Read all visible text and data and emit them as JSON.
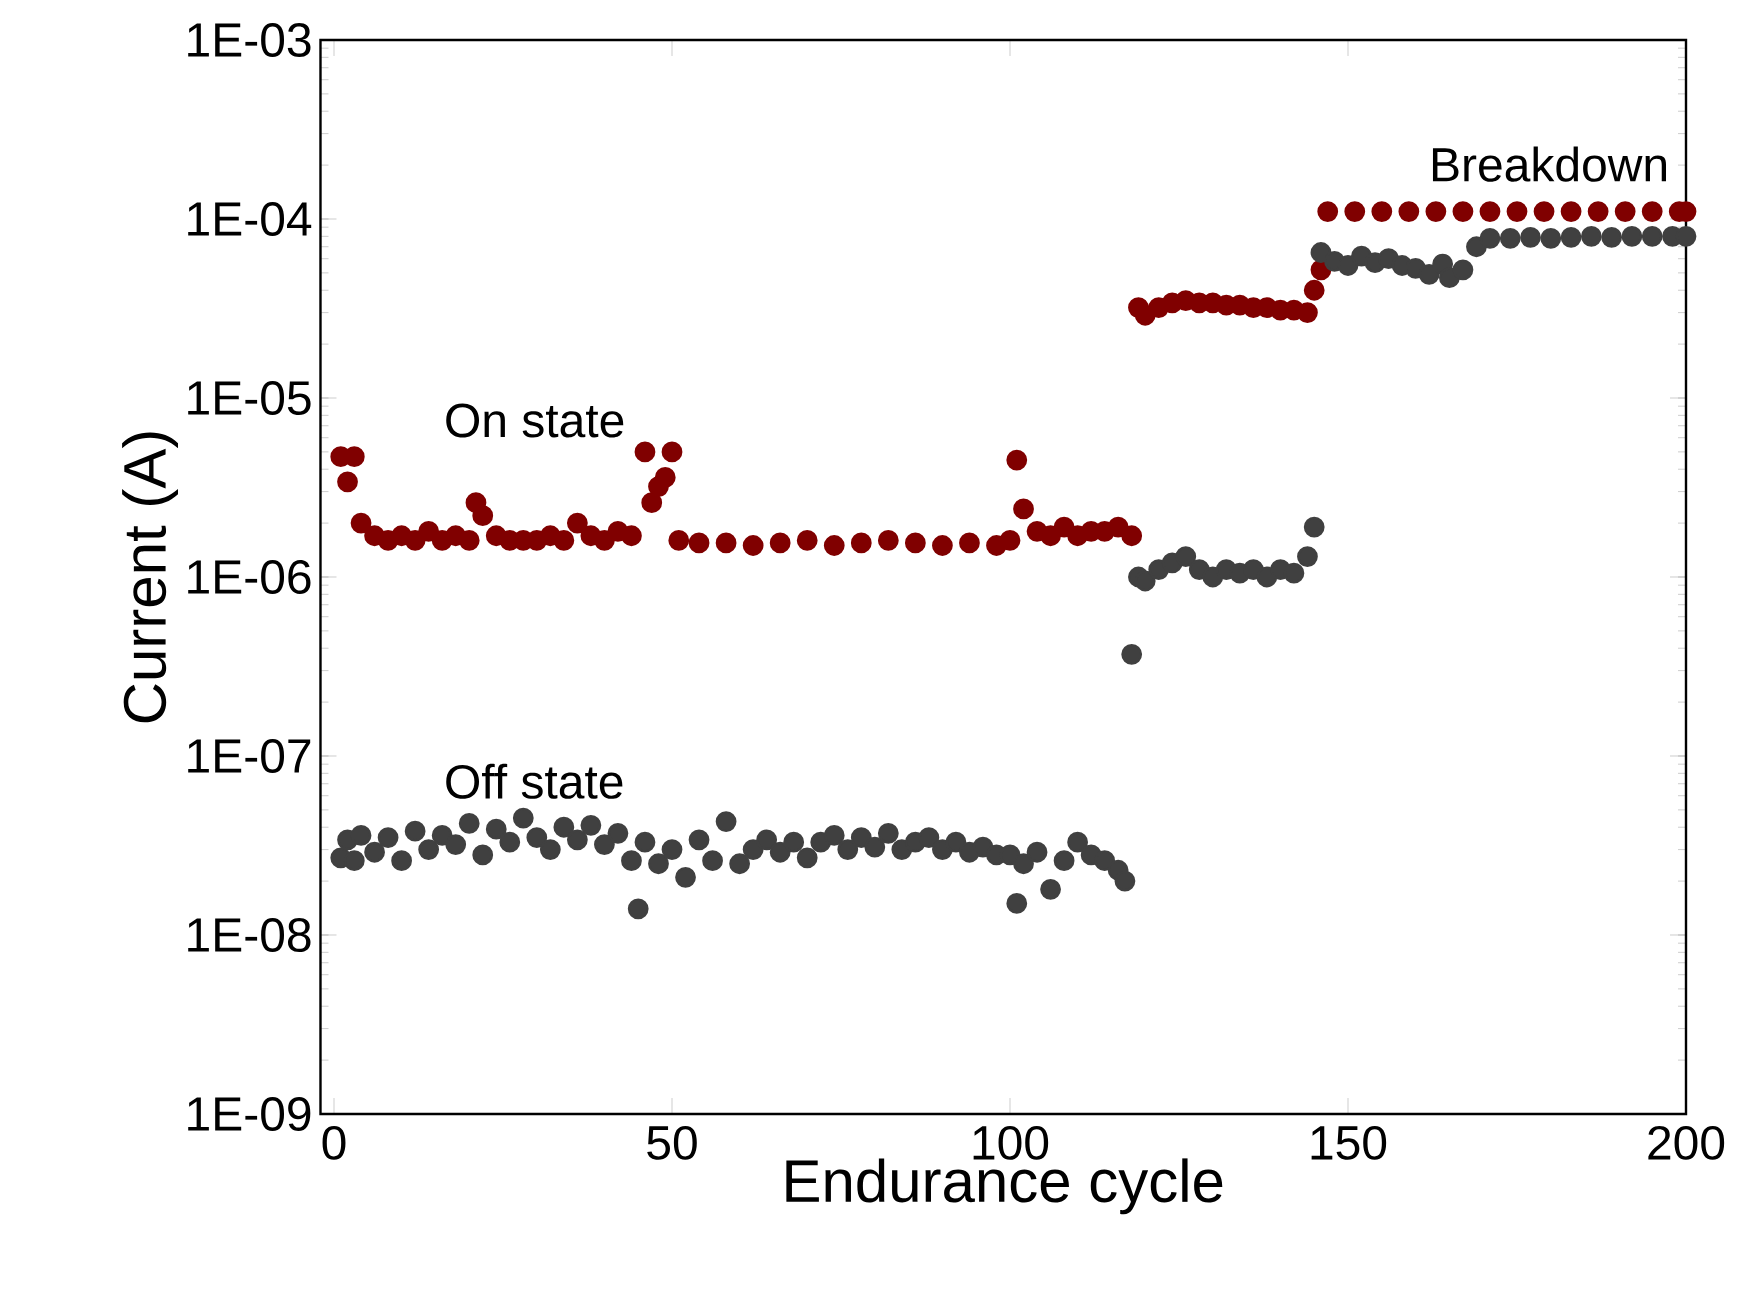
{
  "chart_data": {
    "type": "scatter",
    "xlabel": "Endurance cycle",
    "ylabel": "Current (A)",
    "log": "y",
    "grid": false,
    "legend": false,
    "marker": "circle",
    "xlim": [
      -2,
      200
    ],
    "ylim": [
      1e-09,
      0.001
    ],
    "xticks": [
      0,
      50,
      100,
      150,
      200
    ],
    "yticks": [
      {
        "value": 1e-09,
        "label": "1E-09"
      },
      {
        "value": 1e-08,
        "label": "1E-08"
      },
      {
        "value": 1e-07,
        "label": "1E-07"
      },
      {
        "value": 1e-06,
        "label": "1E-06"
      },
      {
        "value": 1e-05,
        "label": "1E-05"
      },
      {
        "value": 0.0001,
        "label": "1E-04"
      },
      {
        "value": 0.001,
        "label": "1E-03"
      }
    ],
    "series": [
      {
        "name": "On state",
        "color": "#800000",
        "x": [
          1,
          2,
          3,
          4,
          6,
          8,
          10,
          12,
          14,
          16,
          18,
          20,
          21,
          22,
          24,
          26,
          28,
          30,
          32,
          34,
          36,
          38,
          40,
          42,
          44,
          46,
          47,
          48,
          49,
          50,
          51,
          54,
          58,
          62,
          66,
          70,
          74,
          78,
          82,
          86,
          90,
          94,
          98,
          100,
          101,
          102,
          104,
          106,
          108,
          110,
          112,
          114,
          116,
          118,
          119,
          120,
          122,
          124,
          126,
          128,
          130,
          132,
          134,
          136,
          138,
          140,
          142,
          144,
          145,
          146,
          147,
          151,
          155,
          159,
          163,
          167,
          171,
          175,
          179,
          183,
          187,
          191,
          195,
          199,
          200
        ],
        "values": [
          4.7e-06,
          3.4e-06,
          4.7e-06,
          2e-06,
          1.7e-06,
          1.6e-06,
          1.7e-06,
          1.6e-06,
          1.8e-06,
          1.6e-06,
          1.7e-06,
          1.6e-06,
          2.6e-06,
          2.2e-06,
          1.7e-06,
          1.6e-06,
          1.6e-06,
          1.6e-06,
          1.7e-06,
          1.6e-06,
          2e-06,
          1.7e-06,
          1.6e-06,
          1.8e-06,
          1.7e-06,
          5e-06,
          2.6e-06,
          3.2e-06,
          3.6e-06,
          5e-06,
          1.6e-06,
          1.55e-06,
          1.55e-06,
          1.5e-06,
          1.55e-06,
          1.6e-06,
          1.5e-06,
          1.55e-06,
          1.6e-06,
          1.55e-06,
          1.5e-06,
          1.55e-06,
          1.5e-06,
          1.6e-06,
          4.5e-06,
          2.4e-06,
          1.8e-06,
          1.7e-06,
          1.9e-06,
          1.7e-06,
          1.8e-06,
          1.8e-06,
          1.9e-06,
          1.7e-06,
          3.2e-05,
          2.9e-05,
          3.2e-05,
          3.4e-05,
          3.5e-05,
          3.4e-05,
          3.4e-05,
          3.3e-05,
          3.3e-05,
          3.2e-05,
          3.2e-05,
          3.1e-05,
          3.1e-05,
          3e-05,
          4e-05,
          5.2e-05,
          0.00011,
          0.00011,
          0.00011,
          0.00011,
          0.00011,
          0.00011,
          0.00011,
          0.00011,
          0.00011,
          0.00011,
          0.00011,
          0.00011,
          0.00011,
          0.00011,
          0.00011
        ]
      },
      {
        "name": "Off state",
        "color": "#404040",
        "x": [
          1,
          2,
          3,
          4,
          6,
          8,
          10,
          12,
          14,
          16,
          18,
          20,
          22,
          24,
          26,
          28,
          30,
          32,
          34,
          36,
          38,
          40,
          42,
          44,
          45,
          46,
          48,
          50,
          52,
          54,
          56,
          58,
          60,
          62,
          64,
          66,
          68,
          70,
          72,
          74,
          76,
          78,
          80,
          82,
          84,
          86,
          88,
          90,
          92,
          94,
          96,
          98,
          100,
          101,
          102,
          104,
          106,
          108,
          110,
          112,
          114,
          116,
          117,
          118,
          119,
          120,
          122,
          124,
          126,
          128,
          130,
          132,
          134,
          136,
          138,
          140,
          142,
          144,
          145,
          146,
          148,
          150,
          152,
          154,
          156,
          158,
          160,
          162,
          164,
          165,
          167,
          169,
          171,
          174,
          177,
          180,
          183,
          186,
          189,
          192,
          195,
          198,
          200
        ],
        "values": [
          2.7e-08,
          3.4e-08,
          2.6e-08,
          3.6e-08,
          2.9e-08,
          3.5e-08,
          2.6e-08,
          3.8e-08,
          3e-08,
          3.6e-08,
          3.2e-08,
          4.2e-08,
          2.8e-08,
          3.9e-08,
          3.3e-08,
          4.5e-08,
          3.5e-08,
          3e-08,
          4e-08,
          3.4e-08,
          4.1e-08,
          3.2e-08,
          3.7e-08,
          2.6e-08,
          1.4e-08,
          3.3e-08,
          2.5e-08,
          3e-08,
          2.1e-08,
          3.4e-08,
          2.6e-08,
          4.3e-08,
          2.5e-08,
          3e-08,
          3.4e-08,
          2.9e-08,
          3.3e-08,
          2.7e-08,
          3.3e-08,
          3.6e-08,
          3e-08,
          3.5e-08,
          3.1e-08,
          3.7e-08,
          3e-08,
          3.3e-08,
          3.5e-08,
          3e-08,
          3.3e-08,
          2.9e-08,
          3.1e-08,
          2.8e-08,
          2.8e-08,
          1.5e-08,
          2.5e-08,
          2.9e-08,
          1.8e-08,
          2.6e-08,
          3.3e-08,
          2.8e-08,
          2.6e-08,
          2.3e-08,
          2e-08,
          3.7e-07,
          1e-06,
          9.5e-07,
          1.1e-06,
          1.2e-06,
          1.3e-06,
          1.1e-06,
          1e-06,
          1.1e-06,
          1.05e-06,
          1.1e-06,
          1e-06,
          1.1e-06,
          1.05e-06,
          1.3e-06,
          1.9e-06,
          6.5e-05,
          5.8e-05,
          5.5e-05,
          6.2e-05,
          5.7e-05,
          6e-05,
          5.5e-05,
          5.3e-05,
          4.9e-05,
          5.6e-05,
          4.7e-05,
          5.2e-05,
          7e-05,
          7.8e-05,
          7.8e-05,
          7.9e-05,
          7.8e-05,
          7.9e-05,
          8e-05,
          7.9e-05,
          8e-05,
          8e-05,
          8e-05,
          8e-05
        ]
      }
    ],
    "annotations": [
      "Breakdown"
    ]
  }
}
